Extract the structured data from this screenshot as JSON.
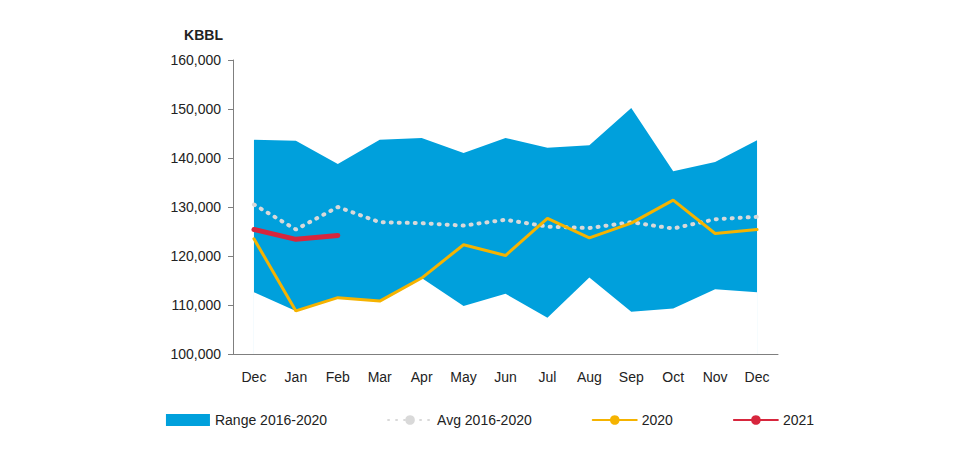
{
  "chart_data": {
    "type": "line",
    "y_label": "KBBL",
    "categories": [
      "Dec",
      "Jan",
      "Feb",
      "Mar",
      "Apr",
      "May",
      "Jun",
      "Jul",
      "Aug",
      "Sep",
      "Oct",
      "Nov",
      "Dec"
    ],
    "ylim": [
      100000,
      160000
    ],
    "yticks": [
      100000,
      110000,
      120000,
      130000,
      140000,
      150000,
      160000
    ],
    "grid": false,
    "legend": "bottom",
    "series": [
      {
        "name": "Range 2016-2020",
        "type": "range",
        "color": "#00a0dc",
        "low": [
          112600,
          108800,
          111500,
          110800,
          115500,
          109800,
          112300,
          107400,
          115600,
          108600,
          109300,
          113200,
          112600
        ],
        "high": [
          143700,
          143500,
          138800,
          143700,
          144100,
          141000,
          144100,
          142100,
          142600,
          150200,
          137300,
          139200,
          143600
        ]
      },
      {
        "name": "Avg 2016-2020",
        "type": "line",
        "color": "#d9d9d9",
        "line_style": "dotted",
        "values": [
          130500,
          125400,
          130000,
          126900,
          126700,
          126200,
          127400,
          126000,
          125700,
          126900,
          125600,
          127500,
          128000
        ]
      },
      {
        "name": "2020",
        "type": "line",
        "color": "#f5b300",
        "line_style": "solid",
        "values": [
          123500,
          108800,
          111500,
          110800,
          115500,
          122300,
          120100,
          127700,
          123700,
          126700,
          131400,
          124600,
          125400
        ]
      },
      {
        "name": "2021",
        "type": "line",
        "color": "#d7263d",
        "line_style": "solid",
        "values": [
          125400,
          123400,
          124200,
          null,
          null,
          null,
          null,
          null,
          null,
          null,
          null,
          null,
          null
        ]
      }
    ]
  }
}
